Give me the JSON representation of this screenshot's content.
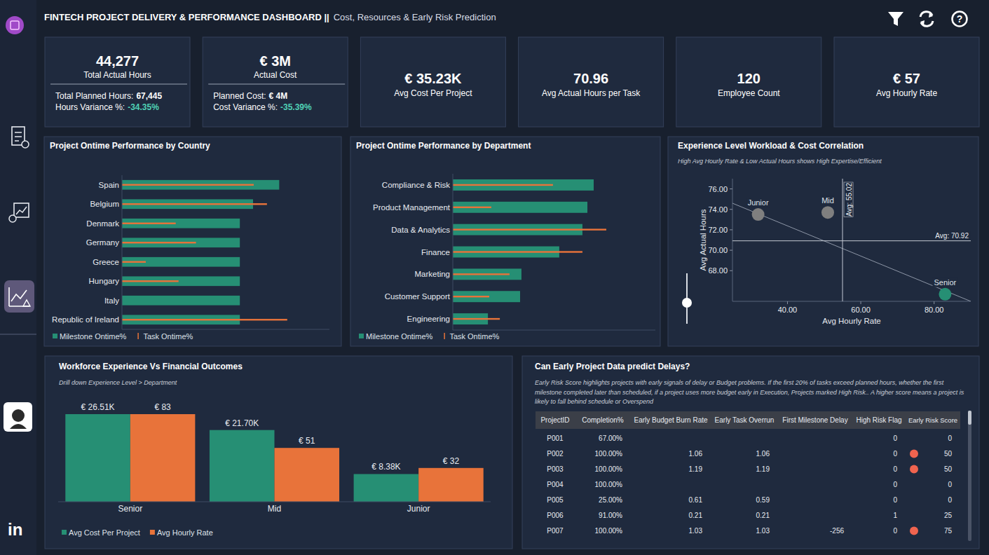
{
  "header": {
    "title": "FINTECH PROJECT DELIVERY & PERFORMANCE DASHBOARD ||",
    "subtitle": "Cost, Resources & Early Risk Prediction",
    "help": "?"
  },
  "sidebar": {
    "linkedin": "in"
  },
  "kpis": [
    {
      "value": "44,277",
      "label": "Total Actual Hours",
      "details": [
        {
          "label": "Total Planned Hours:",
          "value": "67,445"
        },
        {
          "label": "Hours Variance %:",
          "value": "-34.35%"
        }
      ]
    },
    {
      "value": "€ 3M",
      "label": "Actual Cost",
      "details": [
        {
          "label": "Planned Cost:",
          "value": "€ 4M"
        },
        {
          "label": "Cost Variance %:",
          "value": "-35.39%"
        }
      ]
    },
    {
      "value": "€ 35.23K",
      "label": "Avg Cost Per Project"
    },
    {
      "value": "70.96",
      "label": "Avg Actual Hours per Task"
    },
    {
      "value": "120",
      "label": "Employee Count"
    },
    {
      "value": "€ 57",
      "label": "Avg Hourly Rate"
    }
  ],
  "chart_data": [
    {
      "type": "bar",
      "orientation": "horizontal",
      "title": "Project Ontime Performance by Country",
      "categories": [
        "Spain",
        "Belgium",
        "Denmark",
        "Germany",
        "Greece",
        "Hungary",
        "Italy",
        "Republic of Ireland"
      ],
      "series": [
        {
          "name": "Milestone Ontime%",
          "color": "#268f74",
          "values": [
            66.7,
            55.6,
            50,
            50,
            50,
            50,
            50,
            50
          ]
        },
        {
          "name": "Task Ontime%",
          "color": "#e8733a",
          "type": "marker",
          "values": [
            55.9,
            61.5,
            22.8,
            31.4,
            10.1,
            24,
            null,
            70.1
          ]
        }
      ],
      "xlim": [
        0,
        88
      ],
      "tick_labels": "y",
      "legend": "bottom"
    },
    {
      "type": "bar",
      "orientation": "horizontal",
      "title": "Project Ontime Performance by Department",
      "categories": [
        "Compliance & Risk",
        "Product Management",
        "Data & Analytics",
        "Finance",
        "Marketing",
        "Customer Support",
        "Engineering"
      ],
      "series": [
        {
          "name": "Milestone Ontime%",
          "color": "#268f74",
          "values": [
            62.6,
            59.8,
            57.6,
            47.3,
            30.5,
            29.9,
            15.6
          ]
        },
        {
          "name": "Task Ontime%",
          "color": "#e8733a",
          "type": "marker",
          "values": [
            44.5,
            17.1,
            68.2,
            57.6,
            25.2,
            16.2,
            20.9
          ]
        }
      ],
      "xlim": [
        0,
        90
      ],
      "tick_labels": "y",
      "legend": "bottom"
    },
    {
      "type": "scatter",
      "title": "Experience Level Workload & Cost Correlation",
      "subtitle": "High Avg Hourly Rate & Low Actual Hours shows High Expertise/Efficient",
      "x_label": "Avg Hourly Rate",
      "y_label": "Avg Actual Hours",
      "categories": [
        "Junior",
        "Mid",
        "Senior"
      ],
      "x": [
        32,
        51,
        83
      ],
      "values": [
        73.5,
        73.7,
        65.7
      ],
      "colors": [
        "#7f7f7f",
        "#7f7f7f",
        "#268f74"
      ],
      "xlim": [
        25,
        90
      ],
      "ylim": [
        65,
        77
      ],
      "xticks": [
        {
          "value": 40,
          "label": "40.00"
        },
        {
          "value": 60,
          "label": "60.00"
        },
        {
          "value": 80,
          "label": "80.00"
        }
      ],
      "yticks": [
        {
          "value": 68,
          "label": "68.00"
        },
        {
          "value": 70,
          "label": "70.00"
        },
        {
          "value": 72,
          "label": "72.00"
        },
        {
          "value": 74,
          "label": "74.00"
        },
        {
          "value": 76,
          "label": "76.00"
        }
      ],
      "annotations": [
        {
          "axis": "x",
          "value": 55.02,
          "label": "Avg: 55.02"
        },
        {
          "axis": "y",
          "value": 70.92,
          "label": "Avg: 70.92"
        }
      ],
      "trend": {
        "x": [
          25,
          90
        ],
        "y": [
          74.6,
          65.0
        ]
      }
    },
    {
      "type": "bar",
      "title": "Workforce Experience Vs Financial Outcomes",
      "subtitle": "Drill down Experience Level > Department",
      "categories": [
        "Senior",
        "Mid",
        "Junior"
      ],
      "series": [
        {
          "name": "Avg Cost Per Project",
          "color": "#268f74",
          "values": [
            26510,
            21700,
            8380
          ],
          "value_labels": [
            "€ 26.51K",
            "€ 21.70K",
            "€ 8.38K"
          ]
        },
        {
          "name": "Avg Hourly Rate",
          "color": "#e8733a",
          "axis": "y2",
          "values": [
            83,
            51,
            32
          ],
          "value_labels": [
            "€ 83",
            "€ 51",
            "€ 32"
          ]
        }
      ],
      "ylim": [
        0,
        26510
      ],
      "y2lim": [
        0,
        83
      ],
      "data_labels": true,
      "tick_labels": "x",
      "legend": "bottom"
    }
  ],
  "table": {
    "title": "Can Early Project Data predict Delays?",
    "description": "Early Risk Score highlights projects with early signals of delay or Budget problems. If the first 20% of tasks exceed planned hours, whether the first milestone completed later than scheduled, if a project uses more budget early in Execution, Projects marked High Risk.. A higher score means a project is likely to fall behind schedule or Overspend",
    "columns": [
      "ProjectID",
      "Completion%",
      "Early Budget Burn Rate",
      "Early Task Overrun",
      "First Milestone Delay",
      "High Risk Flag",
      "Early Risk Score"
    ],
    "rows": [
      [
        "P001",
        "67.00%",
        null,
        null,
        null,
        0,
        0
      ],
      [
        "P002",
        "100.00%",
        1.06,
        1.06,
        null,
        0,
        50
      ],
      [
        "P003",
        "100.00%",
        1.19,
        1.19,
        null,
        0,
        50
      ],
      [
        "P004",
        "100.00%",
        null,
        null,
        null,
        0,
        0
      ],
      [
        "P005",
        "25.00%",
        0.61,
        0.59,
        null,
        0,
        0
      ],
      [
        "P006",
        "91.00%",
        0.21,
        0.21,
        null,
        1,
        25
      ],
      [
        "P007",
        "100.00%",
        1.03,
        1.03,
        -256,
        0,
        75
      ]
    ],
    "score_icon": [
      false,
      true,
      true,
      false,
      false,
      false,
      true
    ],
    "icon_color": "#f0644f"
  }
}
